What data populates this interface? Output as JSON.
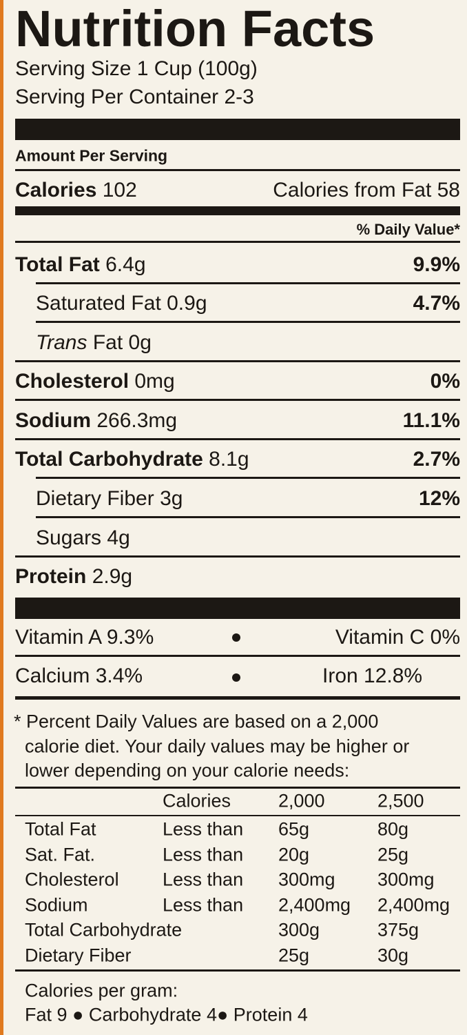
{
  "title": "Nutrition Facts",
  "serving_size": "Serving Size 1 Cup (100g)",
  "servings_per_container": "Serving Per Container 2-3",
  "amount_per_serving": "Amount Per Serving",
  "calories": {
    "label": "Calories",
    "value": "102",
    "from_fat": "Calories from Fat 58"
  },
  "daily_value_header": "% Daily Value*",
  "nutrients": [
    {
      "name": "Total Fat",
      "amount": "6.4g",
      "dv": "9.9%"
    },
    {
      "name": "Saturated Fat",
      "amount": "0.9g",
      "dv": "4.7%"
    },
    {
      "name_italic": "Trans",
      "name": "Fat",
      "amount": "0g"
    },
    {
      "name": "Cholesterol",
      "amount": "0mg",
      "dv": "0%"
    },
    {
      "name": "Sodium",
      "amount": "266.3mg",
      "dv": "11.1%"
    },
    {
      "name": "Total Carbohydrate",
      "amount": "8.1g",
      "dv": "2.7%"
    },
    {
      "name": "Dietary Fiber",
      "amount": "3g",
      "dv": "12%"
    },
    {
      "name": "Sugars",
      "amount": "4g"
    },
    {
      "name": "Protein",
      "amount": "2.9g"
    }
  ],
  "vitamins": [
    [
      "Vitamin A 9.3%",
      "Vitamin C 0%"
    ],
    [
      "Calcium 3.4%",
      "Iron 12.8%"
    ]
  ],
  "footnote": [
    "* Percent Daily Values are based on a 2,000",
    "calorie diet. Your daily values may be higher or",
    "lower depending on your calorie needs:"
  ],
  "reference_table": {
    "header": [
      "Calories",
      "2,000",
      "2,500"
    ],
    "rows": [
      {
        "name": "Total Fat",
        "limit": "Less than",
        "v2000": "65g",
        "v2500": "80g"
      },
      {
        "name": "Sat. Fat.",
        "limit": "Less than",
        "v2000": "20g",
        "v2500": "25g"
      },
      {
        "name": "Cholesterol",
        "limit": "Less than",
        "v2000": "300mg",
        "v2500": "300mg"
      },
      {
        "name": "Sodium",
        "limit": "Less than",
        "v2000": "2,400mg",
        "v2500": "2,400mg"
      },
      {
        "name": "Total Carbohydrate",
        "v2000": "300g",
        "v2500": "375g"
      },
      {
        "name": "Dietary Fiber",
        "v2000": "25g",
        "v2500": "30g"
      }
    ]
  },
  "calories_per_gram": {
    "label": "Calories per gram:",
    "items": [
      "Fat 9",
      "Carbohydrate 4",
      "Protein 4"
    ]
  }
}
